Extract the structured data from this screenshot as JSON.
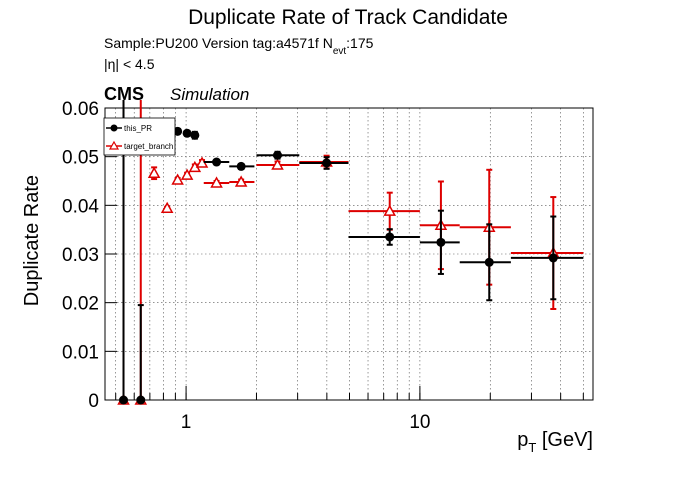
{
  "chart_data": {
    "type": "errorbar",
    "title": "Duplicate Rate of Track Candidate",
    "subtitle": {
      "main": "Sample:PU200   Version tag:a4571f  N",
      "sub": "evt",
      "tail": ":175"
    },
    "eta_cut": "|η| < 4.5",
    "cms": "CMS",
    "simulation": "Simulation",
    "xlabel": {
      "main": "p",
      "sub": "T",
      "tail": " [GeV]"
    },
    "ylabel": "Duplicate Rate",
    "xscale": "log",
    "xlim": [
      0.45,
      55
    ],
    "ylim": [
      0,
      0.06
    ],
    "xticks": [
      1,
      10
    ],
    "yticks": [
      0,
      0.01,
      0.02,
      0.03,
      0.04,
      0.05,
      0.06
    ],
    "xgrid": [
      0.5,
      0.6,
      0.7,
      0.8,
      0.9,
      1,
      2,
      3,
      4,
      5,
      6,
      7,
      8,
      9,
      10,
      20,
      30,
      40,
      50
    ],
    "grid": true,
    "legend": "top-left",
    "series": [
      {
        "name": "this_PR",
        "color": "#000000",
        "marker": "circle",
        "x": [
          0.54,
          0.64,
          0.92,
          1.01,
          1.09,
          1.35,
          1.72,
          2.46,
          3.99,
          7.43,
          12.3,
          19.8,
          37.2
        ],
        "x_lo": [
          0.53,
          0.63,
          0.9,
          0.98,
          1.06,
          1.19,
          1.53,
          2.0,
          3.05,
          4.95,
          10,
          14.8,
          24.5
        ],
        "x_hi": [
          0.55,
          0.65,
          0.94,
          1.04,
          1.12,
          1.53,
          1.96,
          3.05,
          4.95,
          10,
          14.8,
          24.5,
          50
        ],
        "values": [
          0,
          0,
          0.0552,
          0.0548,
          0.0544,
          0.0489,
          0.048,
          0.0503,
          0.0487,
          0.0335,
          0.0324,
          0.0283,
          0.0292
        ],
        "yerr": [
          0.062,
          0.0195,
          0.0005,
          0.0005,
          0.0007,
          0.0004,
          0.0005,
          0.0007,
          0.0012,
          0.0016,
          0.0065,
          0.0078,
          0.0085
        ]
      },
      {
        "name": "target_branch",
        "color": "#dd0000",
        "marker": "triangle-open",
        "x": [
          0.54,
          0.64,
          0.73,
          0.83,
          0.92,
          1.01,
          1.09,
          1.17,
          1.35,
          1.72,
          2.46,
          3.99,
          7.43,
          12.3,
          19.8,
          37.2
        ],
        "x_lo": [
          0.53,
          0.63,
          0.71,
          0.81,
          0.9,
          0.98,
          1.06,
          1.14,
          1.19,
          1.53,
          2.0,
          3.05,
          4.95,
          10,
          14.8,
          24.5
        ],
        "x_hi": [
          0.55,
          0.65,
          0.75,
          0.85,
          0.94,
          1.04,
          1.12,
          1.2,
          1.53,
          1.96,
          3.05,
          4.95,
          10,
          14.8,
          24.5,
          50
        ],
        "values": [
          0,
          0,
          0.0466,
          0.0394,
          0.0452,
          0.0462,
          0.0478,
          0.0487,
          0.0446,
          0.0448,
          0.0483,
          0.0489,
          0.0388,
          0.0359,
          0.0355,
          0.0302
        ],
        "yerr": [
          0.062,
          0.062,
          0.0012,
          0.0003,
          0.0004,
          0.0005,
          0.0006,
          0.0006,
          0.0004,
          0.0005,
          0.0007,
          0.0013,
          0.0038,
          0.009,
          0.0118,
          0.0115
        ]
      }
    ]
  }
}
